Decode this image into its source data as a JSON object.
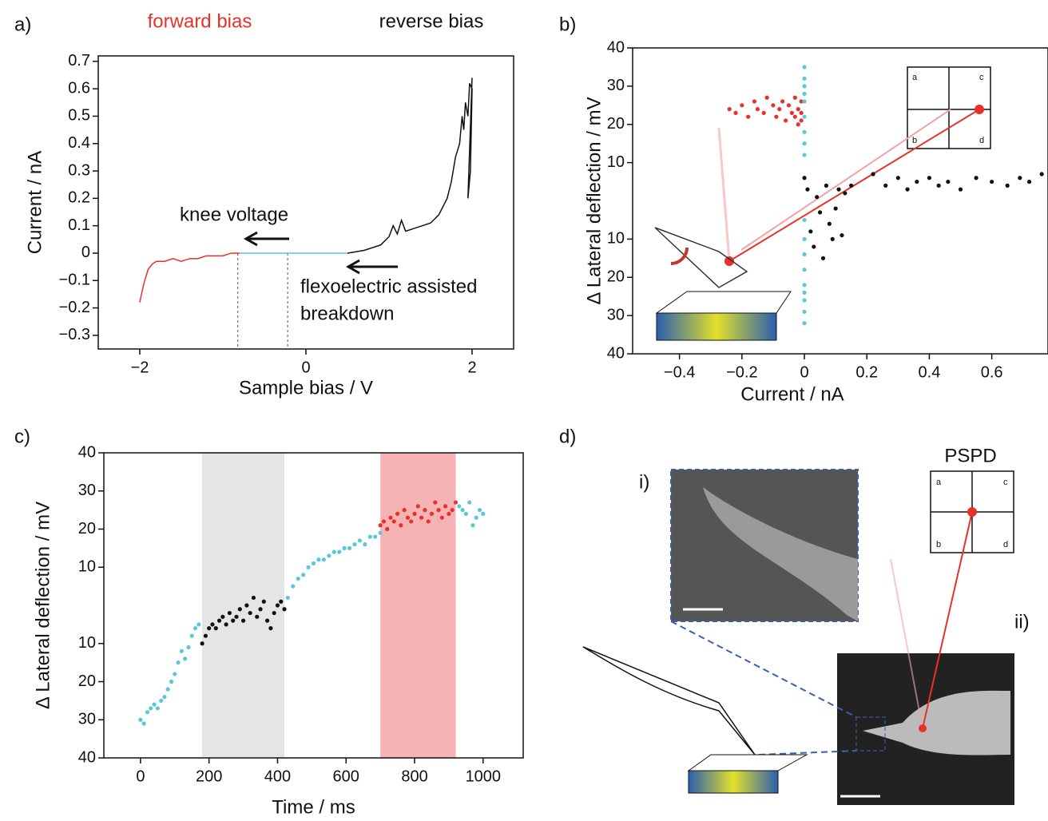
{
  "chart_data": [
    {
      "type": "line",
      "panel_label": "a)",
      "title_left": "forward bias",
      "title_right": "reverse bias",
      "xlabel": "Sample bias / V",
      "ylabel": "Current / nA",
      "annotations": [
        "knee voltage",
        "flexoelectric assisted",
        "breakdown"
      ],
      "xlim": [
        -2.5,
        2.5
      ],
      "ylim": [
        -0.35,
        0.72
      ],
      "xticks": [
        {
          "value": -2,
          "label": "−2"
        },
        0,
        2
      ],
      "yticks": [
        {
          "value": -0.3,
          "label": "−0.3"
        },
        {
          "value": -0.2,
          "label": "−0.2"
        },
        {
          "value": -0.1,
          "label": "−0.1"
        },
        0,
        0.1,
        0.2,
        0.3,
        0.4,
        0.5,
        0.6,
        0.7
      ],
      "vlines": [
        -0.82,
        -0.22
      ],
      "series": [
        {
          "color": "#e8312a",
          "x": [
            -2,
            -1.98,
            -1.95,
            -1.9,
            -1.85,
            -1.8,
            -1.7,
            -1.6,
            -1.5,
            -1.4,
            -1.3,
            -1.2,
            -1.1,
            -1.0,
            -0.9,
            -0.8
          ],
          "values": [
            -0.18,
            -0.15,
            -0.11,
            -0.06,
            -0.04,
            -0.03,
            -0.03,
            -0.02,
            -0.03,
            -0.02,
            -0.02,
            -0.01,
            -0.01,
            -0.01,
            0,
            0
          ]
        },
        {
          "color": "#5bc8d8",
          "x": [
            -0.8,
            0.5
          ],
          "values": [
            0,
            0
          ]
        },
        {
          "color": "#111111",
          "x": [
            0.5,
            0.7,
            0.9,
            1.0,
            1.05,
            1.1,
            1.15,
            1.2,
            1.3,
            1.4,
            1.5,
            1.6,
            1.7,
            1.75,
            1.8,
            1.85,
            1.88,
            1.9,
            1.92,
            1.95,
            1.97,
            2.0,
            1.98,
            1.95,
            2.0
          ],
          "values": [
            0,
            0.01,
            0.03,
            0.06,
            0.1,
            0.07,
            0.12,
            0.08,
            0.09,
            0.1,
            0.11,
            0.14,
            0.2,
            0.26,
            0.35,
            0.4,
            0.5,
            0.45,
            0.55,
            0.5,
            0.62,
            0.6,
            0.3,
            0.2,
            0.64
          ]
        }
      ]
    },
    {
      "type": "scatter",
      "panel_label": "b)",
      "xlabel": "Current / nA",
      "ylabel": "Δ Lateral deflection / mV",
      "inset_labels": [
        "a",
        "c",
        "b",
        "d"
      ],
      "xlim": [
        -0.55,
        0.78
      ],
      "ylim": [
        -40,
        40
      ],
      "xticks": [
        {
          "value": -0.4,
          "label": "−0.4"
        },
        {
          "value": -0.2,
          "label": "−0.2"
        },
        0,
        0.2,
        0.4,
        0.6
      ],
      "yticks": [
        {
          "value": -40,
          "label": "40"
        },
        {
          "value": -30,
          "label": "30"
        },
        {
          "value": -20,
          "label": "20"
        },
        {
          "value": -10,
          "label": "10"
        },
        10,
        20,
        30,
        40
      ],
      "series": [
        {
          "color": "#e8312a",
          "x": [
            -0.24,
            -0.22,
            -0.2,
            -0.18,
            -0.16,
            -0.15,
            -0.13,
            -0.12,
            -0.1,
            -0.09,
            -0.08,
            -0.07,
            -0.06,
            -0.05,
            -0.04,
            -0.03,
            -0.03,
            -0.02,
            -0.02,
            -0.01,
            -0.01,
            -0.01
          ],
          "values": [
            24,
            23,
            25,
            22,
            26,
            24,
            23,
            27,
            25,
            22,
            24,
            26,
            21,
            25,
            23,
            27,
            22,
            24,
            20,
            26,
            23,
            21
          ]
        },
        {
          "color": "#5bc8d8",
          "x": [
            0,
            0,
            0,
            0,
            0,
            0,
            0,
            0,
            0,
            0,
            0,
            0,
            0,
            0,
            0,
            0,
            0,
            0
          ],
          "values": [
            35,
            32,
            30,
            28,
            26,
            22,
            18,
            15,
            12,
            -5,
            -10,
            -14,
            -18,
            -22,
            -24,
            -26,
            -29,
            -32
          ]
        },
        {
          "color": "#111111",
          "x": [
            0,
            0.01,
            0.02,
            0.03,
            0.04,
            0.05,
            0.06,
            0.07,
            0.08,
            0.09,
            0.1,
            0.11,
            0.12,
            0.13,
            0.15,
            0.22,
            0.26,
            0.3,
            0.33,
            0.36,
            0.4,
            0.43,
            0.46,
            0.5,
            0.55,
            0.6,
            0.65,
            0.69,
            0.72,
            0.76
          ],
          "values": [
            6,
            3,
            -8,
            -12,
            1,
            -3,
            -15,
            4,
            -6,
            -10,
            -2,
            3,
            -9,
            2,
            4,
            7,
            4,
            6,
            3,
            5,
            6,
            4,
            5,
            3,
            6,
            5,
            4,
            6,
            5,
            7
          ]
        }
      ]
    },
    {
      "type": "scatter",
      "panel_label": "c)",
      "xlabel": "Time / ms",
      "ylabel": "Δ Lateral deflection / mV",
      "xlim": [
        -107,
        1117
      ],
      "ylim": [
        -40,
        40
      ],
      "xticks": [
        0,
        200,
        400,
        600,
        800,
        1000
      ],
      "yticks": [
        {
          "value": -40,
          "label": "40"
        },
        {
          "value": -30,
          "label": "30"
        },
        {
          "value": -20,
          "label": "20"
        },
        {
          "value": -10,
          "label": "10"
        },
        10,
        20,
        30,
        40
      ],
      "bands": [
        {
          "x": [
            180,
            420
          ],
          "color": "#e4e5e5"
        },
        {
          "x": [
            700,
            920
          ],
          "color": "#f5b3b6"
        }
      ],
      "series": [
        {
          "color": "#5bc8d8",
          "x": [
            0,
            10,
            20,
            30,
            40,
            50,
            60,
            70,
            80,
            90,
            100,
            110,
            120,
            130,
            140,
            150,
            160,
            170
          ],
          "values": [
            -30,
            -31,
            -28,
            -27,
            -26,
            -27,
            -25,
            -24,
            -22,
            -20,
            -18,
            -15,
            -12,
            -14,
            -11,
            -8,
            -6,
            -5
          ]
        },
        {
          "color": "#111111",
          "x": [
            180,
            190,
            200,
            210,
            220,
            230,
            240,
            250,
            260,
            270,
            280,
            290,
            300,
            310,
            320,
            330,
            340,
            350,
            360,
            370,
            380,
            390,
            400,
            410,
            420
          ],
          "values": [
            -10,
            -8,
            -6,
            -5,
            -6,
            -4,
            -3,
            -5,
            -2,
            -4,
            -3,
            -1,
            -4,
            0,
            -2,
            2,
            -3,
            -1,
            1,
            -4,
            -6,
            -2,
            0,
            1,
            -1
          ]
        },
        {
          "color": "#5bc8d8",
          "x": [
            430,
            445,
            460,
            475,
            490,
            505,
            520,
            535,
            550,
            565,
            580,
            595,
            610,
            625,
            640,
            655,
            670,
            685,
            700
          ],
          "values": [
            2,
            5,
            7,
            8,
            10,
            11,
            12,
            12,
            13,
            14,
            14,
            15,
            15,
            16,
            17,
            16,
            18,
            18,
            19
          ]
        },
        {
          "color": "#e8312a",
          "x": [
            700,
            710,
            720,
            730,
            740,
            750,
            760,
            770,
            780,
            790,
            800,
            810,
            820,
            830,
            840,
            850,
            860,
            870,
            880,
            890,
            900,
            910,
            920
          ],
          "values": [
            21,
            22,
            20,
            23,
            22,
            24,
            21,
            25,
            23,
            22,
            24,
            26,
            23,
            25,
            22,
            24,
            27,
            25,
            23,
            26,
            24,
            25,
            27
          ]
        },
        {
          "color": "#5bc8d8",
          "x": [
            930,
            940,
            950,
            960,
            970,
            980,
            990,
            1000
          ],
          "values": [
            26,
            25,
            24,
            27,
            21,
            23,
            25,
            24
          ]
        }
      ]
    }
  ],
  "panel_d": {
    "label": "d)",
    "sub_labels": [
      "i)",
      "ii)"
    ],
    "title": "PSPD",
    "quadrants": [
      "a",
      "c",
      "b",
      "d"
    ]
  }
}
